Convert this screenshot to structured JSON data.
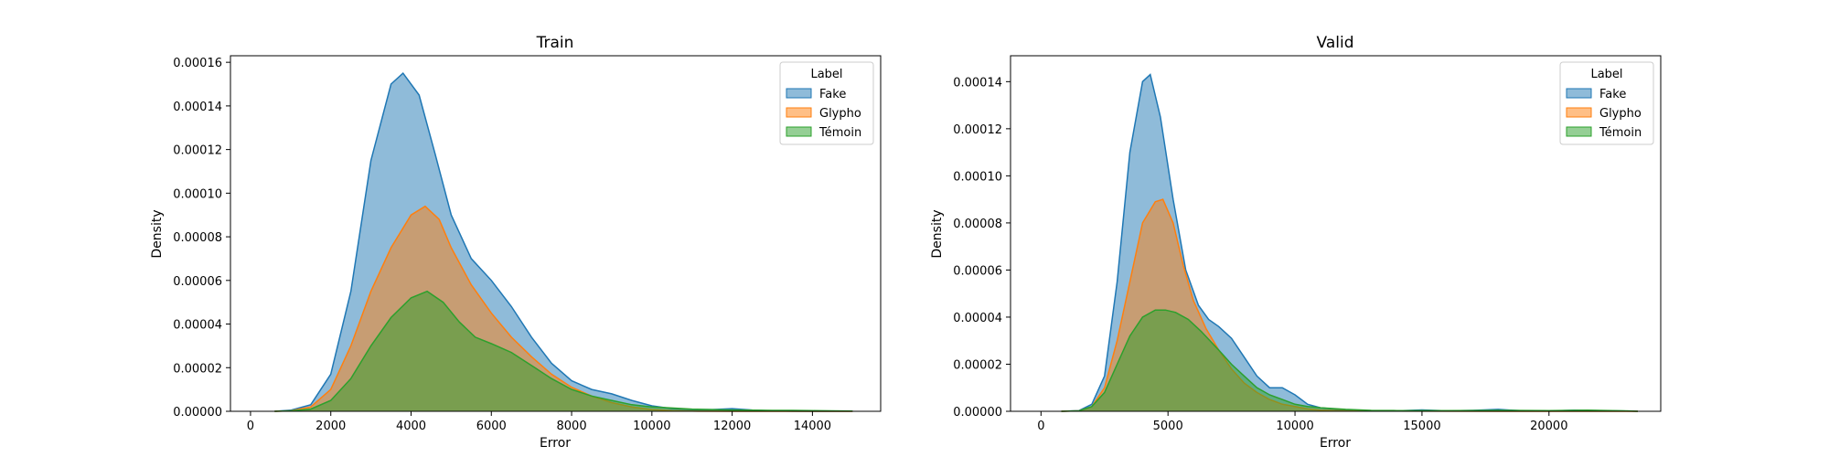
{
  "chart_data": [
    {
      "type": "area",
      "title": "Train",
      "xlabel": "Error",
      "ylabel": "Density",
      "xlim": [
        -500,
        15700
      ],
      "ylim": [
        0,
        0.000163
      ],
      "xticks": [
        0,
        2000,
        4000,
        6000,
        8000,
        10000,
        12000,
        14000
      ],
      "xtick_labels": [
        "0",
        "2000",
        "4000",
        "6000",
        "8000",
        "10000",
        "12000",
        "14000"
      ],
      "yticks": [
        0,
        2e-05,
        4e-05,
        6e-05,
        8e-05,
        0.0001,
        0.00012,
        0.00014,
        0.00016
      ],
      "ytick_labels": [
        "0.00000",
        "0.00002",
        "0.00004",
        "0.00006",
        "0.00008",
        "0.00010",
        "0.00012",
        "0.00014",
        "0.00016"
      ],
      "grid": false,
      "legend": {
        "title": "Label",
        "position": "top-right"
      },
      "series": [
        {
          "name": "Fake",
          "color": "#1f77b4",
          "x": [
            600,
            1000,
            1500,
            2000,
            2500,
            3000,
            3500,
            3800,
            4200,
            4600,
            5000,
            5500,
            6000,
            6500,
            7000,
            7500,
            8000,
            8500,
            9000,
            9500,
            10000,
            10500,
            11000,
            11500,
            12000,
            12500,
            13000,
            13500,
            14000,
            14500,
            15000
          ],
          "y": [
            0,
            5e-07,
            3e-06,
            1.7e-05,
            5.5e-05,
            0.000115,
            0.00015,
            0.000155,
            0.000145,
            0.000118,
            9e-05,
            7e-05,
            6e-05,
            4.8e-05,
            3.4e-05,
            2.2e-05,
            1.4e-05,
            1e-05,
            8e-06,
            5e-06,
            2.5e-06,
            1.2e-06,
            8e-07,
            8e-07,
            1.2e-06,
            6e-07,
            2e-07,
            5e-08,
            0,
            0,
            0
          ]
        },
        {
          "name": "Glypho",
          "color": "#ff7f0e",
          "x": [
            600,
            1000,
            1500,
            2000,
            2500,
            3000,
            3500,
            4000,
            4350,
            4700,
            5000,
            5500,
            6000,
            6500,
            7000,
            7500,
            8000,
            8500,
            9000,
            9500,
            10000,
            10500,
            11000,
            12000,
            13000,
            14000,
            15000
          ],
          "y": [
            0,
            2e-07,
            2e-06,
            1e-05,
            3e-05,
            5.5e-05,
            7.5e-05,
            9e-05,
            9.4e-05,
            8.8e-05,
            7.5e-05,
            5.8e-05,
            4.5e-05,
            3.4e-05,
            2.5e-05,
            1.7e-05,
            1.1e-05,
            7e-06,
            4e-06,
            2e-06,
            8e-07,
            3e-07,
            1e-07,
            0,
            0,
            0,
            0
          ]
        },
        {
          "name": "Témoin",
          "color": "#2ca02c",
          "x": [
            600,
            1000,
            1500,
            2000,
            2500,
            3000,
            3500,
            4000,
            4400,
            4800,
            5200,
            5600,
            6000,
            6500,
            7000,
            7500,
            8000,
            8500,
            9000,
            9500,
            10000,
            10500,
            11000,
            11500,
            12000,
            12500,
            13000,
            13500,
            14000,
            14500,
            15000
          ],
          "y": [
            0,
            2e-07,
            1e-06,
            5e-06,
            1.5e-05,
            3e-05,
            4.3e-05,
            5.2e-05,
            5.5e-05,
            5e-05,
            4.1e-05,
            3.4e-05,
            3.1e-05,
            2.7e-05,
            2.1e-05,
            1.5e-05,
            1e-05,
            7e-06,
            5e-06,
            3e-06,
            2e-06,
            1.5e-06,
            1e-06,
            8e-07,
            6e-07,
            5e-07,
            4e-07,
            4e-07,
            3e-07,
            2e-07,
            1e-07
          ]
        }
      ]
    },
    {
      "type": "area",
      "title": "Valid",
      "xlabel": "Error",
      "ylabel": "Density",
      "xlim": [
        -1200,
        24400
      ],
      "ylim": [
        0,
        0.000151
      ],
      "xticks": [
        0,
        5000,
        10000,
        15000,
        20000
      ],
      "xtick_labels": [
        "0",
        "5000",
        "10000",
        "15000",
        "20000"
      ],
      "yticks": [
        0,
        2e-05,
        4e-05,
        6e-05,
        8e-05,
        0.0001,
        0.00012,
        0.00014
      ],
      "ytick_labels": [
        "0.00000",
        "0.00002",
        "0.00004",
        "0.00006",
        "0.00008",
        "0.00010",
        "0.00012",
        "0.00014"
      ],
      "grid": false,
      "legend": {
        "title": "Label",
        "position": "top-right"
      },
      "series": [
        {
          "name": "Fake",
          "color": "#1f77b4",
          "x": [
            800,
            1500,
            2000,
            2500,
            3000,
            3500,
            4000,
            4300,
            4700,
            5200,
            5700,
            6200,
            6600,
            7000,
            7500,
            8000,
            8500,
            9000,
            9500,
            10000,
            10500,
            11000,
            12000,
            13000,
            14000,
            15000,
            16000,
            17000,
            18000,
            19000,
            20000,
            21000,
            22000,
            23000,
            23500
          ],
          "y": [
            0,
            3e-07,
            3e-06,
            1.5e-05,
            5.5e-05,
            0.00011,
            0.00014,
            0.000143,
            0.000125,
            9e-05,
            6e-05,
            4.5e-05,
            3.9e-05,
            3.6e-05,
            3.1e-05,
            2.3e-05,
            1.5e-05,
            1e-05,
            1e-05,
            7e-06,
            3e-06,
            1.5e-06,
            5e-07,
            3e-07,
            2e-07,
            6e-07,
            2e-07,
            4e-07,
            8e-07,
            2e-07,
            1e-07,
            5e-07,
            3e-07,
            1e-07,
            0
          ]
        },
        {
          "name": "Glypho",
          "color": "#ff7f0e",
          "x": [
            800,
            1500,
            2000,
            2500,
            3000,
            3500,
            4000,
            4500,
            4800,
            5200,
            5600,
            6000,
            6500,
            7000,
            7500,
            8000,
            8500,
            9000,
            9500,
            10000,
            10500,
            11000,
            12000,
            14000,
            18000,
            23500
          ],
          "y": [
            0,
            2e-07,
            2e-06,
            1e-05,
            3e-05,
            5.5e-05,
            8e-05,
            8.9e-05,
            9e-05,
            8e-05,
            6.2e-05,
            4.7e-05,
            3.5e-05,
            2.6e-05,
            1.8e-05,
            1.2e-05,
            8e-06,
            5e-06,
            3e-06,
            2e-06,
            1e-06,
            5e-07,
            2e-07,
            1e-07,
            0,
            0
          ]
        },
        {
          "name": "Témoin",
          "color": "#2ca02c",
          "x": [
            800,
            1500,
            2000,
            2500,
            3000,
            3500,
            4000,
            4500,
            4900,
            5300,
            5800,
            6300,
            7000,
            7500,
            8000,
            8500,
            9000,
            9500,
            10000,
            10500,
            11000,
            12000,
            13000,
            14000,
            16000,
            18000,
            20000,
            21500,
            23000,
            23500
          ],
          "y": [
            0,
            2e-07,
            2e-06,
            8e-06,
            2e-05,
            3.2e-05,
            4e-05,
            4.3e-05,
            4.3e-05,
            4.2e-05,
            3.9e-05,
            3.4e-05,
            2.6e-05,
            2e-05,
            1.5e-05,
            1e-05,
            7e-06,
            5e-06,
            3e-06,
            2e-06,
            1.5e-06,
            8e-07,
            4e-07,
            3e-07,
            3e-07,
            4e-07,
            3e-07,
            5e-07,
            2e-07,
            0
          ]
        }
      ]
    }
  ]
}
